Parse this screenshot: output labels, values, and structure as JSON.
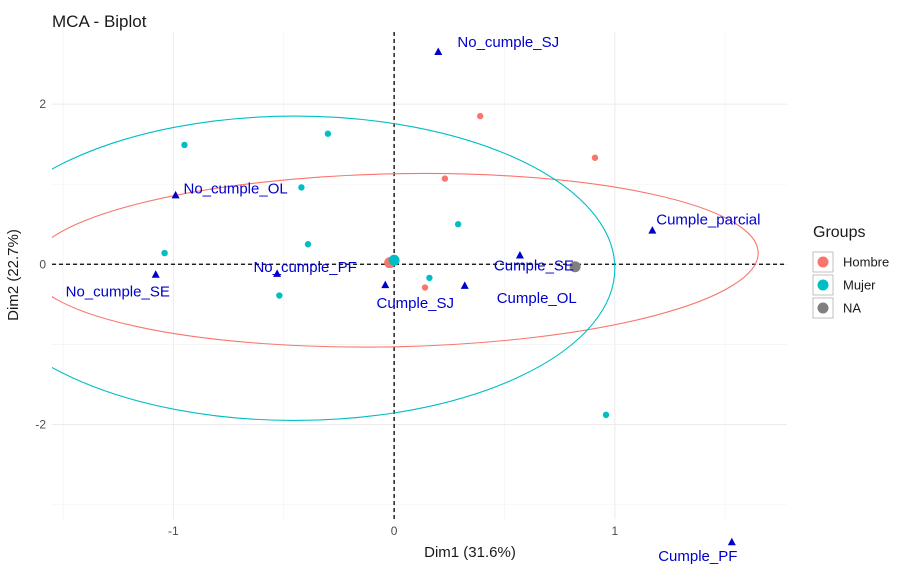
{
  "chart_data": {
    "type": "scatter",
    "title": "MCA - Biplot",
    "xlabel": "Dim1 (31.6%)",
    "ylabel": "Dim2 (22.7%)",
    "xlim": [
      -1.55,
      1.78
    ],
    "ylim": [
      -3.18,
      2.9
    ],
    "x_ticks": [
      -1,
      0,
      1
    ],
    "x_tick_labels": [
      "-1",
      "0",
      "1"
    ],
    "y_ticks": [
      -2,
      0,
      2
    ],
    "y_tick_labels": [
      "-2",
      "0",
      "2"
    ],
    "grid": true,
    "legend_position": "right",
    "legend": {
      "title": "Groups",
      "entries": [
        {
          "label": "Hombre",
          "color": "#F8766D"
        },
        {
          "label": "Mujer",
          "color": "#00BFC4"
        },
        {
          "label": "NA",
          "color": "#7F7F7F"
        }
      ]
    },
    "series": [
      {
        "name": "Hombre",
        "color": "#F8766D",
        "points": [
          [
            0.39,
            1.85
          ],
          [
            0.91,
            1.33
          ],
          [
            0.23,
            1.07
          ],
          [
            0.14,
            -0.29
          ],
          [
            -0.03,
            0.02
          ]
        ],
        "centroid": [
          -0.02,
          0.02
        ],
        "ellipse": {
          "cx": 0.0,
          "cy": 0.05,
          "rx": 1.65,
          "ry": 1.08,
          "angle_deg": 1.2
        }
      },
      {
        "name": "Mujer",
        "color": "#00BFC4",
        "points": [
          [
            -0.95,
            1.49
          ],
          [
            -0.3,
            1.63
          ],
          [
            -0.42,
            0.96
          ],
          [
            -1.04,
            0.14
          ],
          [
            -0.39,
            0.25
          ],
          [
            -0.52,
            -0.39
          ],
          [
            0.29,
            0.5
          ],
          [
            0.16,
            -0.17
          ],
          [
            0.96,
            -1.88
          ]
        ],
        "centroid": [
          0.0,
          0.05
        ],
        "ellipse": {
          "cx": -0.45,
          "cy": -0.05,
          "rx": 1.45,
          "ry": 1.9,
          "angle_deg": 0
        }
      },
      {
        "name": "NA",
        "color": "#7F7F7F",
        "points": [
          [
            0.82,
            -0.03
          ]
        ],
        "centroid": [
          0.82,
          -0.03
        ]
      }
    ],
    "variables": {
      "color": "#0000CD",
      "points": [
        {
          "label": "No_cumple_SJ",
          "x": 0.2,
          "y": 2.65
        },
        {
          "label": "No_cumple_OL",
          "x": -0.99,
          "y": 0.86
        },
        {
          "label": "Cumple_parcial",
          "x": 1.17,
          "y": 0.42
        },
        {
          "label": "No_cumple_PF",
          "x": -0.53,
          "y": -0.12
        },
        {
          "label": "No_cumple_SE",
          "x": -1.08,
          "y": -0.13
        },
        {
          "label": "Cumple_SJ",
          "x": -0.04,
          "y": -0.26
        },
        {
          "label": "Cumple_SE",
          "x": 0.57,
          "y": 0.11
        },
        {
          "label": "Cumple_OL",
          "x": 0.32,
          "y": -0.27
        },
        {
          "label": "Cumple_PF",
          "x": 1.53,
          "y": -3.47
        }
      ]
    }
  }
}
